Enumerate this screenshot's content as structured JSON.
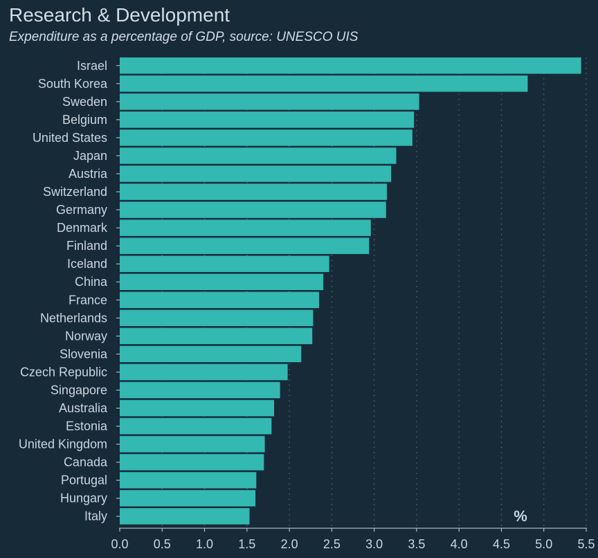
{
  "title": "Research & Development",
  "subtitle": "Expenditure as a percentage of GDP, source: UNESCO UIS",
  "colors": {
    "background": "#172a38",
    "bar": "#33b8b2",
    "text": "#c9d6df",
    "grid": "#5a6f7d"
  },
  "chart_data": {
    "type": "bar",
    "orientation": "horizontal",
    "title": "Research & Development",
    "subtitle": "Expenditure as a percentage of GDP, source: UNESCO UIS",
    "unit_label": "%",
    "categories": [
      "Israel",
      "South Korea",
      "Sweden",
      "Belgium",
      "United States",
      "Japan",
      "Austria",
      "Switzerland",
      "Germany",
      "Denmark",
      "Finland",
      "Iceland",
      "China",
      "France",
      "Netherlands",
      "Norway",
      "Slovenia",
      "Czech Republic",
      "Singapore",
      "Australia",
      "Estonia",
      "United Kingdom",
      "Canada",
      "Portugal",
      "Hungary",
      "Italy"
    ],
    "values": [
      5.44,
      4.81,
      3.53,
      3.47,
      3.45,
      3.26,
      3.2,
      3.15,
      3.14,
      2.96,
      2.94,
      2.47,
      2.4,
      2.35,
      2.28,
      2.27,
      2.14,
      1.98,
      1.89,
      1.82,
      1.79,
      1.71,
      1.7,
      1.61,
      1.6,
      1.53
    ],
    "xlim": [
      0,
      5.5
    ],
    "xticks": [
      "0.0",
      "0.5",
      "1.0",
      "1.5",
      "2.0",
      "2.5",
      "3.0",
      "3.5",
      "4.0",
      "4.5",
      "5.0",
      "5.5"
    ],
    "grid": true,
    "grid_style": "dotted vertical"
  }
}
